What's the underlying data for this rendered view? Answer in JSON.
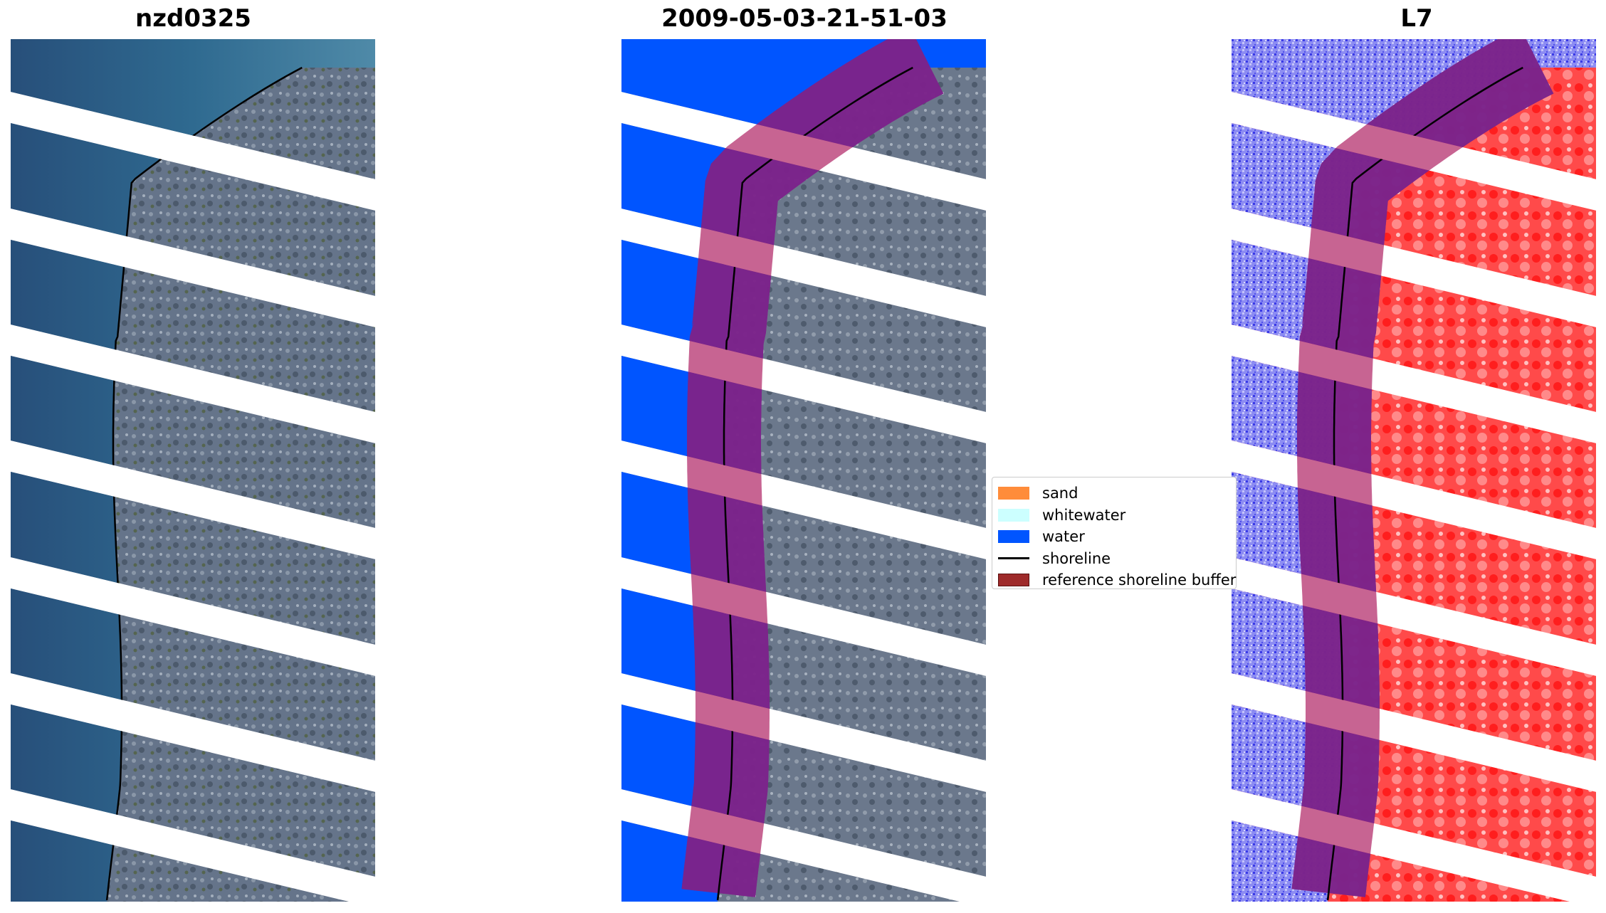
{
  "panels": [
    {
      "title": "nzd0325",
      "style": "rgb"
    },
    {
      "title": "2009-05-03-21-51-03",
      "style": "classified"
    },
    {
      "title": "L7",
      "style": "index"
    }
  ],
  "legend": {
    "items": [
      {
        "label": "sand",
        "color": "#ff8c3a",
        "kind": "patch"
      },
      {
        "label": "whitewater",
        "color": "#ccffff",
        "kind": "patch"
      },
      {
        "label": "water",
        "color": "#0055ff",
        "kind": "patch"
      },
      {
        "label": "shoreline",
        "color": "#000000",
        "kind": "line"
      },
      {
        "label": "reference shoreline buffer",
        "color": "#9e2a2a",
        "kind": "patch"
      }
    ]
  },
  "colors": {
    "sea_rgb": "#2e5f8c",
    "land_rgb": "#6a7a90",
    "water_class": "#0055ff",
    "land_index": "#ff2a2a",
    "water_index": "#7c7cf0",
    "buffer": "#7a1f7a"
  }
}
